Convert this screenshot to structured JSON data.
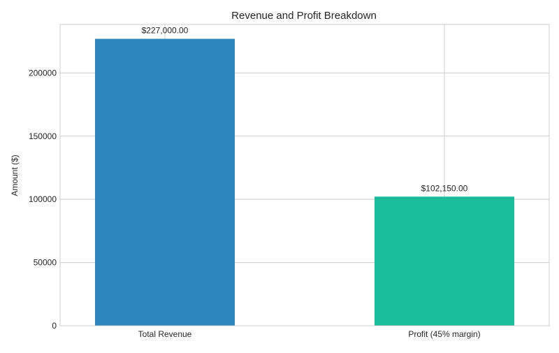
{
  "chart_data": {
    "type": "bar",
    "title": "Revenue and Profit Breakdown",
    "xlabel": "",
    "ylabel": "Amount ($)",
    "categories": [
      "Total Revenue",
      "Profit (45% margin)"
    ],
    "values": [
      227000,
      102150
    ],
    "data_labels": [
      "$227,000.00",
      "$102,150.00"
    ],
    "colors": [
      "#2e86c1",
      "#1abc9c"
    ],
    "ylim": [
      0,
      238350
    ],
    "yticks": [
      0,
      50000,
      100000,
      150000,
      200000
    ],
    "ytick_labels": [
      "0",
      "50000",
      "100000",
      "150000",
      "200000"
    ],
    "grid": true,
    "legend": "none"
  }
}
